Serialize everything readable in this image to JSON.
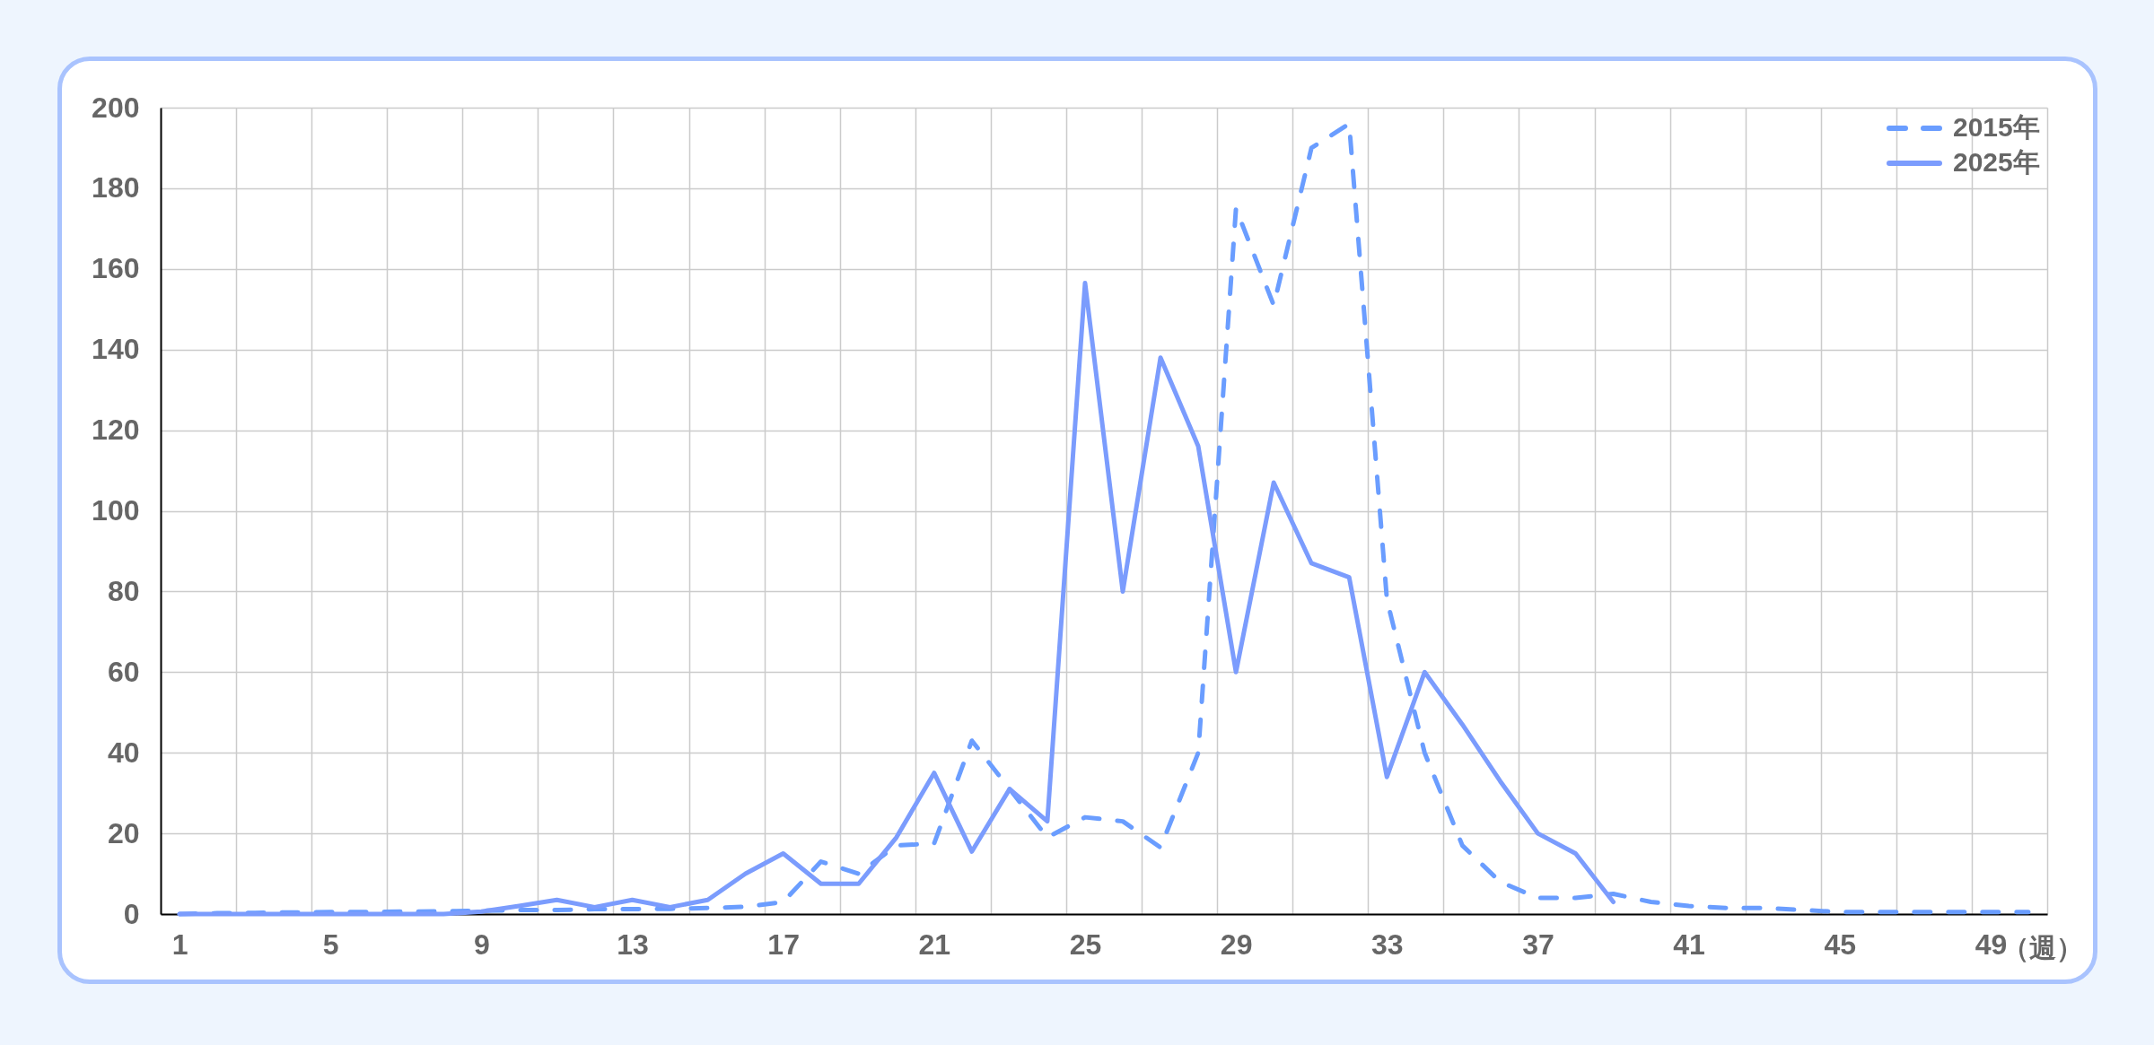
{
  "chart_data": {
    "type": "line",
    "xlabel": "（週）",
    "categories": [
      "1",
      null,
      null,
      null,
      "5",
      null,
      null,
      null,
      "9",
      null,
      null,
      null,
      "13",
      null,
      null,
      null,
      "17",
      null,
      null,
      null,
      "21",
      null,
      null,
      null,
      "25",
      null,
      null,
      null,
      "29",
      null,
      null,
      null,
      "33",
      null,
      null,
      null,
      "37",
      null,
      null,
      null,
      "41",
      null,
      null,
      null,
      "45",
      null,
      null,
      null,
      "49",
      null
    ],
    "series": [
      {
        "name": "2015年",
        "color": "#6a9dff",
        "line_style": "dashed",
        "values": [
          0,
          0.2,
          0.3,
          0.4,
          0.5,
          0.5,
          0.6,
          0.7,
          0.8,
          1,
          1,
          1.2,
          1.2,
          1.3,
          1.5,
          1.8,
          3,
          13,
          10,
          17,
          17.5,
          43,
          31,
          19,
          24,
          23,
          16.5,
          40,
          175,
          151,
          190,
          196,
          78,
          40,
          17,
          8,
          4,
          4,
          5,
          3,
          2,
          1.5,
          1.5,
          1,
          0.5,
          0.5,
          0.5,
          0.5,
          0.5,
          0.5
        ]
      },
      {
        "name": "2025年",
        "color": "#7b9cfd",
        "line_style": "solid",
        "values": [
          0,
          0,
          0,
          0,
          0,
          0,
          0,
          0,
          0.6,
          2,
          3.5,
          1.7,
          3.5,
          1.7,
          3.5,
          10,
          15,
          7.5,
          7.5,
          19,
          35,
          15.5,
          31,
          23,
          156.5,
          80,
          138,
          116,
          60,
          107,
          87,
          83.5,
          34,
          60,
          47,
          33,
          20,
          15,
          3,
          null,
          null,
          null,
          null,
          null,
          null,
          null,
          null,
          null,
          null,
          null
        ]
      }
    ],
    "ylim": [
      0,
      200
    ],
    "yticks": [
      0,
      20,
      40,
      60,
      80,
      100,
      120,
      140,
      160,
      180,
      200
    ],
    "grid": true,
    "legend": "top right"
  }
}
